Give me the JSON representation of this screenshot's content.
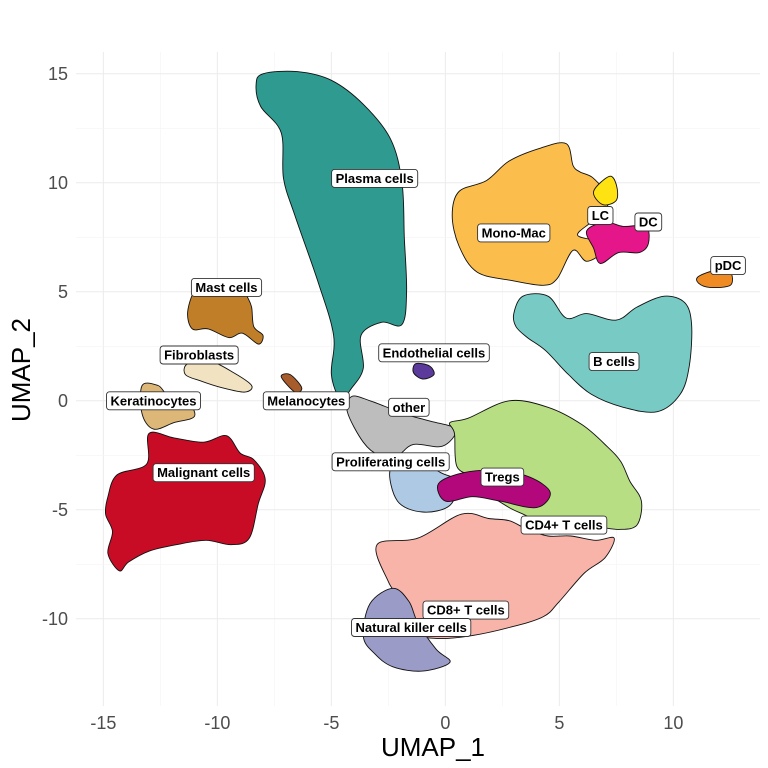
{
  "chart_data": {
    "type": "scatter",
    "title": "",
    "xlabel": "UMAP_1",
    "ylabel": "UMAP_2",
    "xlim": [
      -16.2,
      13.8
    ],
    "ylim": [
      -14,
      16
    ],
    "xticks": [
      -15,
      -10,
      -5,
      0,
      5,
      10
    ],
    "yticks": [
      -10,
      -5,
      0,
      5,
      10,
      15
    ],
    "xtick_labels": [
      "-15",
      "-10",
      "-5",
      "0",
      "5",
      "10"
    ],
    "ytick_labels": [
      "-10",
      "-5",
      "0",
      "5",
      "10",
      "15"
    ],
    "grid": true,
    "legend": "none",
    "clusters": [
      {
        "name": "Plasma cells",
        "color": "#2f9a8f",
        "label_at": [
          -3.1,
          10.2
        ],
        "outline": [
          [
            -8.0,
            15.0
          ],
          [
            -6.5,
            15.1
          ],
          [
            -5.0,
            14.7
          ],
          [
            -3.6,
            13.6
          ],
          [
            -2.4,
            12.0
          ],
          [
            -1.9,
            10.0
          ],
          [
            -1.8,
            7.5
          ],
          [
            -1.7,
            5.0
          ],
          [
            -1.9,
            3.5
          ],
          [
            -2.8,
            3.6
          ],
          [
            -3.7,
            3.0
          ],
          [
            -3.6,
            1.5
          ],
          [
            -4.1,
            0.6
          ],
          [
            -4.6,
            0.1
          ],
          [
            -5.0,
            1.2
          ],
          [
            -4.9,
            3.0
          ],
          [
            -5.6,
            5.5
          ],
          [
            -6.6,
            8.5
          ],
          [
            -7.1,
            10.2
          ],
          [
            -7.2,
            12.3
          ],
          [
            -8.1,
            13.5
          ],
          [
            -8.3,
            14.5
          ]
        ]
      },
      {
        "name": "Mono-Mac",
        "color": "#fbbe4d",
        "label_at": [
          3.0,
          7.7
        ],
        "outline": [
          [
            0.3,
            8.5
          ],
          [
            0.6,
            9.6
          ],
          [
            1.8,
            10.1
          ],
          [
            2.8,
            11.0
          ],
          [
            4.2,
            11.6
          ],
          [
            5.3,
            11.8
          ],
          [
            5.6,
            10.8
          ],
          [
            5.9,
            10.5
          ],
          [
            6.5,
            10.2
          ],
          [
            7.2,
            9.2
          ],
          [
            6.5,
            8.3
          ],
          [
            5.8,
            7.6
          ],
          [
            6.8,
            7.3
          ],
          [
            7.0,
            6.9
          ],
          [
            6.2,
            6.4
          ],
          [
            5.6,
            6.9
          ],
          [
            4.9,
            5.6
          ],
          [
            4.3,
            5.3
          ],
          [
            3.0,
            5.5
          ],
          [
            1.4,
            5.9
          ],
          [
            0.6,
            7.1
          ]
        ]
      },
      {
        "name": "LC",
        "color": "#ffe212",
        "label_at": [
          6.8,
          8.5
        ],
        "outline": [
          [
            6.5,
            9.6
          ],
          [
            7.2,
            10.3
          ],
          [
            7.5,
            9.9
          ],
          [
            7.5,
            9.2
          ],
          [
            6.9,
            9.0
          ]
        ]
      },
      {
        "name": "DC",
        "color": "#e5168a",
        "label_at": [
          8.9,
          8.2
        ],
        "outline": [
          [
            6.2,
            7.8
          ],
          [
            7.0,
            8.2
          ],
          [
            7.8,
            8.0
          ],
          [
            8.8,
            8.0
          ],
          [
            8.9,
            7.2
          ],
          [
            8.5,
            6.8
          ],
          [
            7.6,
            6.8
          ],
          [
            6.8,
            6.3
          ],
          [
            6.5,
            7.0
          ]
        ]
      },
      {
        "name": "pDC",
        "color": "#f08b23",
        "label_at": [
          12.4,
          6.2
        ],
        "outline": [
          [
            11.1,
            5.7
          ],
          [
            11.9,
            6.0
          ],
          [
            12.5,
            5.9
          ],
          [
            12.5,
            5.3
          ],
          [
            11.6,
            5.2
          ],
          [
            11.1,
            5.4
          ]
        ]
      },
      {
        "name": "B cells",
        "color": "#77cbc4",
        "label_at": [
          7.4,
          1.8
        ],
        "outline": [
          [
            3.0,
            4.0
          ],
          [
            3.4,
            4.8
          ],
          [
            4.5,
            4.8
          ],
          [
            5.3,
            3.8
          ],
          [
            6.2,
            4.0
          ],
          [
            7.5,
            3.7
          ],
          [
            8.4,
            4.3
          ],
          [
            9.6,
            4.8
          ],
          [
            10.5,
            4.5
          ],
          [
            10.8,
            3.5
          ],
          [
            10.7,
            1.6
          ],
          [
            10.3,
            0.3
          ],
          [
            9.3,
            -0.5
          ],
          [
            7.8,
            -0.3
          ],
          [
            6.4,
            0.3
          ],
          [
            5.4,
            1.2
          ],
          [
            4.4,
            2.3
          ],
          [
            3.6,
            2.9
          ],
          [
            3.1,
            3.4
          ]
        ]
      },
      {
        "name": "Mast cells",
        "color": "#c07e29",
        "label_at": [
          -9.6,
          5.2
        ],
        "outline": [
          [
            -11.3,
            4.1
          ],
          [
            -10.9,
            5.2
          ],
          [
            -10.1,
            5.3
          ],
          [
            -9.0,
            5.4
          ],
          [
            -8.7,
            4.8
          ],
          [
            -8.5,
            4.3
          ],
          [
            -8.4,
            3.4
          ],
          [
            -8.0,
            3.0
          ],
          [
            -8.2,
            2.6
          ],
          [
            -8.9,
            3.1
          ],
          [
            -9.5,
            2.9
          ],
          [
            -10.4,
            3.3
          ],
          [
            -11.1,
            3.3
          ]
        ]
      },
      {
        "name": "Fibroblasts",
        "color": "#f1e3c2",
        "label_at": [
          -10.8,
          2.1
        ],
        "outline": [
          [
            -11.3,
            1.7
          ],
          [
            -10.3,
            1.8
          ],
          [
            -9.3,
            1.3
          ],
          [
            -8.5,
            0.7
          ],
          [
            -8.8,
            0.4
          ],
          [
            -9.8,
            0.6
          ],
          [
            -10.7,
            0.9
          ],
          [
            -11.4,
            1.2
          ]
        ]
      },
      {
        "name": "Keratinocytes",
        "color": "#dcb777",
        "label_at": [
          -12.8,
          0.0
        ],
        "outline": [
          [
            -13.3,
            0.7
          ],
          [
            -12.6,
            0.7
          ],
          [
            -12.2,
            0.3
          ],
          [
            -11.4,
            0.1
          ],
          [
            -11.0,
            -0.7
          ],
          [
            -11.9,
            -1.0
          ],
          [
            -12.8,
            -1.3
          ],
          [
            -13.3,
            -0.6
          ]
        ]
      },
      {
        "name": "Melanocytes",
        "color": "#a85c2b",
        "label_at": [
          -6.1,
          0.0
        ],
        "outline": [
          [
            -7.2,
            1.1
          ],
          [
            -6.8,
            1.2
          ],
          [
            -6.3,
            0.6
          ],
          [
            -6.6,
            0.4
          ]
        ]
      },
      {
        "name": "Malignant cells",
        "color": "#c80c26",
        "label_at": [
          -10.6,
          -3.3
        ],
        "outline": [
          [
            -14.8,
            -4.4
          ],
          [
            -14.4,
            -3.4
          ],
          [
            -13.1,
            -2.9
          ],
          [
            -13.0,
            -1.5
          ],
          [
            -11.9,
            -1.7
          ],
          [
            -10.6,
            -1.9
          ],
          [
            -9.6,
            -1.6
          ],
          [
            -9.0,
            -2.4
          ],
          [
            -8.4,
            -2.7
          ],
          [
            -7.9,
            -3.6
          ],
          [
            -8.2,
            -4.7
          ],
          [
            -8.6,
            -6.3
          ],
          [
            -9.4,
            -6.6
          ],
          [
            -10.5,
            -6.4
          ],
          [
            -11.8,
            -6.6
          ],
          [
            -13.0,
            -6.9
          ],
          [
            -13.9,
            -7.4
          ],
          [
            -14.3,
            -7.8
          ],
          [
            -14.8,
            -7.0
          ],
          [
            -14.6,
            -6.0
          ],
          [
            -14.9,
            -5.2
          ]
        ]
      },
      {
        "name": "Endothelial cells",
        "color": "#5b3a9b",
        "label_at": [
          -0.5,
          2.2
        ],
        "outline": [
          [
            -1.3,
            1.7
          ],
          [
            -0.7,
            1.6
          ],
          [
            -0.5,
            1.2
          ],
          [
            -1.0,
            1.0
          ],
          [
            -1.4,
            1.3
          ]
        ]
      },
      {
        "name": "other",
        "color": "#bdbdbd",
        "label_at": [
          -1.6,
          -0.3
        ],
        "outline": [
          [
            -4.1,
            0.2
          ],
          [
            -3.3,
            0.0
          ],
          [
            -2.3,
            -0.4
          ],
          [
            -1.5,
            -0.7
          ],
          [
            -0.4,
            -1.0
          ],
          [
            0.3,
            -1.2
          ],
          [
            0.4,
            -1.6
          ],
          [
            -0.2,
            -2.1
          ],
          [
            -1.4,
            -2.0
          ],
          [
            -2.1,
            -2.5
          ],
          [
            -2.9,
            -2.5
          ],
          [
            -3.6,
            -1.9
          ],
          [
            -4.3,
            -0.5
          ]
        ]
      },
      {
        "name": "Proliferating cells",
        "color": "#aec9e3",
        "label_at": [
          -2.4,
          -2.8
        ],
        "outline": [
          [
            -2.4,
            -3.1
          ],
          [
            -1.3,
            -2.7
          ],
          [
            -0.2,
            -3.3
          ],
          [
            0.5,
            -3.7
          ],
          [
            0.2,
            -4.8
          ],
          [
            -1.0,
            -5.1
          ],
          [
            -2.1,
            -4.6
          ]
        ]
      },
      {
        "name": "CD4+ T cells",
        "color": "#b8de84",
        "label_at": [
          5.2,
          -5.7
        ],
        "outline": [
          [
            1.0,
            -0.8
          ],
          [
            2.8,
            0.0
          ],
          [
            4.5,
            -0.3
          ],
          [
            6.0,
            -1.1
          ],
          [
            7.1,
            -2.1
          ],
          [
            7.7,
            -2.8
          ],
          [
            8.1,
            -3.7
          ],
          [
            8.6,
            -4.6
          ],
          [
            8.4,
            -5.7
          ],
          [
            7.6,
            -5.9
          ],
          [
            6.6,
            -5.8
          ],
          [
            5.5,
            -6.0
          ],
          [
            4.5,
            -5.9
          ],
          [
            3.6,
            -5.3
          ],
          [
            2.8,
            -4.9
          ],
          [
            1.8,
            -4.2
          ],
          [
            1.2,
            -3.5
          ],
          [
            0.5,
            -3.0
          ],
          [
            0.4,
            -1.5
          ],
          [
            0.2,
            -1.0
          ]
        ]
      },
      {
        "name": "Tregs",
        "color": "#b3077c",
        "label_at": [
          2.5,
          -3.5
        ],
        "outline": [
          [
            -0.3,
            -3.8
          ],
          [
            0.8,
            -3.3
          ],
          [
            2.3,
            -3.2
          ],
          [
            3.7,
            -3.5
          ],
          [
            4.6,
            -4.2
          ],
          [
            4.0,
            -4.9
          ],
          [
            2.4,
            -4.6
          ],
          [
            1.2,
            -4.4
          ],
          [
            0.0,
            -4.6
          ]
        ]
      },
      {
        "name": "CD8+ T cells",
        "color": "#f8b4a9",
        "label_at": [
          0.9,
          -9.6
        ],
        "outline": [
          [
            -3.0,
            -6.6
          ],
          [
            -1.2,
            -6.3
          ],
          [
            0.7,
            -5.2
          ],
          [
            1.9,
            -5.4
          ],
          [
            2.8,
            -5.5
          ],
          [
            3.6,
            -5.9
          ],
          [
            4.5,
            -6.2
          ],
          [
            5.5,
            -6.2
          ],
          [
            6.6,
            -6.4
          ],
          [
            7.4,
            -6.3
          ],
          [
            7.0,
            -7.2
          ],
          [
            6.1,
            -7.9
          ],
          [
            5.0,
            -9.2
          ],
          [
            4.3,
            -9.9
          ],
          [
            2.8,
            -10.4
          ],
          [
            1.0,
            -10.8
          ],
          [
            -0.4,
            -10.9
          ],
          [
            -1.4,
            -10.6
          ],
          [
            -2.0,
            -9.1
          ],
          [
            -2.5,
            -8.3
          ]
        ]
      },
      {
        "name": "Natural killer cells",
        "color": "#9b9bc8",
        "label_at": [
          -1.5,
          -10.4
        ],
        "outline": [
          [
            -3.3,
            -9.3
          ],
          [
            -2.3,
            -8.6
          ],
          [
            -1.6,
            -9.2
          ],
          [
            -1.2,
            -10.2
          ],
          [
            -0.4,
            -11.4
          ],
          [
            0.2,
            -12.0
          ],
          [
            -1.0,
            -12.4
          ],
          [
            -2.3,
            -12.2
          ],
          [
            -3.1,
            -11.6
          ],
          [
            -3.6,
            -10.8
          ]
        ]
      }
    ]
  }
}
